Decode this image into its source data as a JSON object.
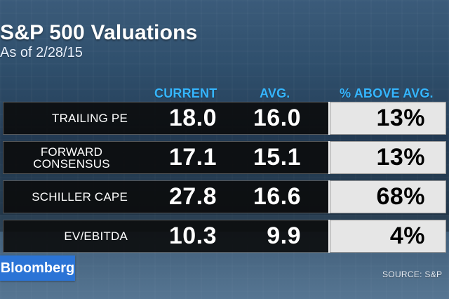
{
  "header": {
    "title": "S&P 500 Valuations",
    "subtitle": "As of 2/28/15"
  },
  "table": {
    "columns": {
      "current": "CURRENT",
      "avg": "AVG.",
      "above": "% ABOVE AVG."
    },
    "rows": [
      {
        "label": "TRAILING PE",
        "current": "18.0",
        "avg": "16.0",
        "above": "13%"
      },
      {
        "label_line1": "FORWARD",
        "label_line2": "CONSENSUS",
        "current": "17.1",
        "avg": "15.1",
        "above": "13%"
      },
      {
        "label": "SCHILLER CAPE",
        "current": "27.8",
        "avg": "16.6",
        "above": "68%"
      },
      {
        "label": "EV/EBITDA",
        "current": "10.3",
        "avg": "9.9",
        "above": "4%"
      }
    ]
  },
  "footer": {
    "brand": "Bloomberg",
    "source": "SOURCE: S&P"
  },
  "colors": {
    "header_blue": "#35b6ff",
    "row_black": "#0a0a0a",
    "above_gray": "#e6e6e6",
    "brand_blue": "#2b74d6"
  }
}
